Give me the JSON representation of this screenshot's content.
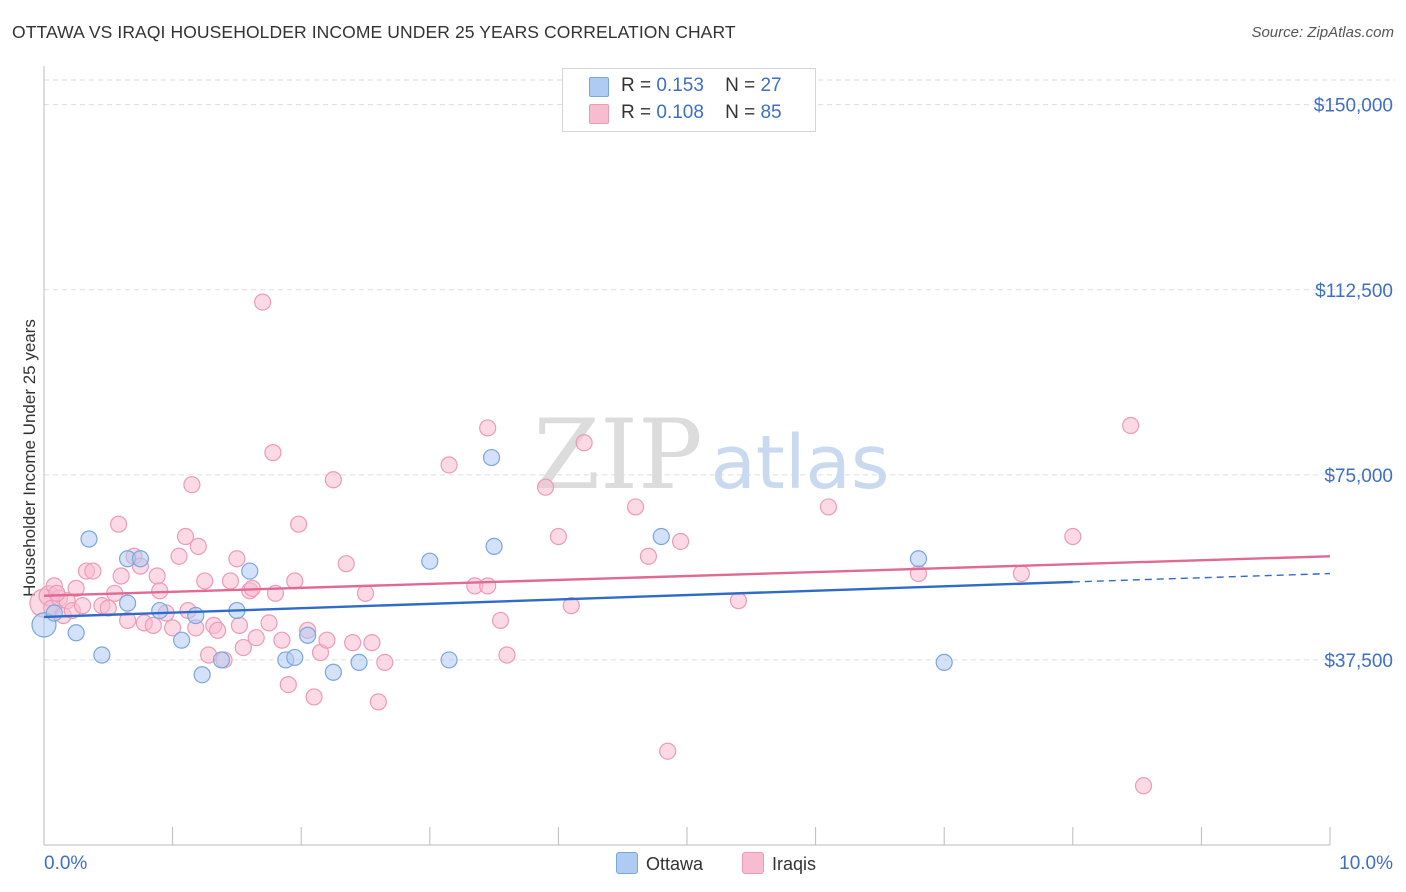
{
  "title": "OTTAWA VS IRAQI HOUSEHOLDER INCOME UNDER 25 YEARS CORRELATION CHART",
  "source": "Source: ZipAtlas.com",
  "watermark": {
    "zip": "ZIP",
    "atlas": "atlas"
  },
  "legend_top": [
    {
      "r_label": "R =",
      "r_value": "0.153",
      "n_label": "N =",
      "n_value": "27"
    },
    {
      "r_label": "R =",
      "r_value": "0.108",
      "n_label": "N =",
      "n_value": "85"
    }
  ],
  "legend_bottom": [
    {
      "label": "Ottawa"
    },
    {
      "label": "Iraqis"
    }
  ],
  "colors": {
    "ottawa_fill": "#aecbf2",
    "ottawa_stroke": "#7aa6e0",
    "ottawa_line": "#2e6cc7",
    "iraqis_fill": "#f7bcd0",
    "iraqis_stroke": "#ee9ab6",
    "iraqis_line": "#e06a94",
    "tick_label": "#3d6fc4",
    "grid": "#dddddd"
  },
  "chart_data": {
    "type": "scatter",
    "title": "OTTAWA VS IRAQI HOUSEHOLDER INCOME UNDER 25 YEARS CORRELATION CHART",
    "xlabel": "",
    "ylabel": "Householder Income Under 25 years",
    "xlim": [
      0,
      10
    ],
    "ylim": [
      0,
      155000
    ],
    "x_tick_labels": [
      "0.0%",
      "10.0%"
    ],
    "y_ticks": [
      37500,
      75000,
      112500,
      150000
    ],
    "y_tick_labels": [
      "$37,500",
      "$75,000",
      "$112,500",
      "$150,000"
    ],
    "series": [
      {
        "name": "Ottawa",
        "r": 0.153,
        "n": 27,
        "trend": {
          "x0": 0.0,
          "y0": 46200,
          "x1": 8.0,
          "y1": 53300,
          "dashed_to_x": 10.0,
          "dashed_to_y": 55000
        },
        "points": [
          [
            0.0,
            44600,
            12
          ],
          [
            0.08,
            47000,
            8
          ],
          [
            0.25,
            43000,
            8
          ],
          [
            0.35,
            62000,
            8
          ],
          [
            0.45,
            38500,
            8
          ],
          [
            0.65,
            58000,
            8
          ],
          [
            0.75,
            58000,
            8
          ],
          [
            0.9,
            47500,
            8
          ],
          [
            1.07,
            41500,
            8
          ],
          [
            1.18,
            46500,
            8
          ],
          [
            1.23,
            34500,
            8
          ],
          [
            1.38,
            37500,
            8
          ],
          [
            1.5,
            47500,
            8
          ],
          [
            1.6,
            55500,
            8
          ],
          [
            1.88,
            37500,
            8
          ],
          [
            1.95,
            38000,
            8
          ],
          [
            2.05,
            42500,
            8
          ],
          [
            2.25,
            35000,
            8
          ],
          [
            2.45,
            37000,
            8
          ],
          [
            3.0,
            57500,
            8
          ],
          [
            3.15,
            37500,
            8
          ],
          [
            3.48,
            78500,
            8
          ],
          [
            3.5,
            60500,
            8
          ],
          [
            4.8,
            62500,
            8
          ],
          [
            6.8,
            58000,
            8
          ],
          [
            7.0,
            37000,
            8
          ],
          [
            0.65,
            49000,
            8
          ]
        ]
      },
      {
        "name": "Iraqis",
        "r": 0.108,
        "n": 85,
        "trend": {
          "x0": 0.0,
          "y0": 50500,
          "x1": 10.0,
          "y1": 58500
        },
        "points": [
          [
            0.0,
            49000,
            14
          ],
          [
            0.04,
            50500,
            10
          ],
          [
            0.06,
            48000,
            8
          ],
          [
            0.08,
            52500,
            8
          ],
          [
            0.12,
            50000,
            8
          ],
          [
            0.15,
            46500,
            8
          ],
          [
            0.18,
            49500,
            8
          ],
          [
            0.22,
            47500,
            8
          ],
          [
            0.25,
            52000,
            8
          ],
          [
            0.3,
            48500,
            8
          ],
          [
            0.33,
            55500,
            8
          ],
          [
            0.38,
            55500,
            8
          ],
          [
            0.45,
            48500,
            8
          ],
          [
            0.5,
            48000,
            8
          ],
          [
            0.55,
            51000,
            8
          ],
          [
            0.58,
            65000,
            8
          ],
          [
            0.6,
            54500,
            8
          ],
          [
            0.65,
            45500,
            8
          ],
          [
            0.7,
            58500,
            8
          ],
          [
            0.75,
            56500,
            8
          ],
          [
            0.78,
            45000,
            8
          ],
          [
            0.85,
            44500,
            8
          ],
          [
            0.88,
            54500,
            8
          ],
          [
            0.9,
            51500,
            8
          ],
          [
            0.95,
            47000,
            8
          ],
          [
            1.0,
            44000,
            8
          ],
          [
            1.05,
            58500,
            8
          ],
          [
            1.1,
            62500,
            8
          ],
          [
            1.12,
            47500,
            8
          ],
          [
            1.15,
            73000,
            8
          ],
          [
            1.18,
            44000,
            8
          ],
          [
            1.2,
            60500,
            8
          ],
          [
            1.25,
            53500,
            8
          ],
          [
            1.28,
            38500,
            8
          ],
          [
            1.32,
            44500,
            8
          ],
          [
            1.35,
            43500,
            8
          ],
          [
            1.4,
            37500,
            8
          ],
          [
            1.45,
            53500,
            8
          ],
          [
            1.5,
            58000,
            8
          ],
          [
            1.52,
            44500,
            8
          ],
          [
            1.55,
            40000,
            8
          ],
          [
            1.6,
            51500,
            8
          ],
          [
            1.62,
            52000,
            8
          ],
          [
            1.65,
            42000,
            8
          ],
          [
            1.7,
            110000,
            8
          ],
          [
            1.75,
            45000,
            8
          ],
          [
            1.78,
            79500,
            8
          ],
          [
            1.8,
            51000,
            8
          ],
          [
            1.85,
            41500,
            8
          ],
          [
            1.9,
            32500,
            8
          ],
          [
            1.95,
            53500,
            8
          ],
          [
            1.98,
            65000,
            8
          ],
          [
            2.05,
            43500,
            8
          ],
          [
            2.1,
            30000,
            8
          ],
          [
            2.15,
            39000,
            8
          ],
          [
            2.2,
            41500,
            8
          ],
          [
            2.25,
            74000,
            8
          ],
          [
            2.35,
            57000,
            8
          ],
          [
            2.4,
            41000,
            8
          ],
          [
            2.5,
            51000,
            8
          ],
          [
            2.55,
            41000,
            8
          ],
          [
            2.6,
            29000,
            8
          ],
          [
            2.65,
            37000,
            8
          ],
          [
            3.15,
            77000,
            8
          ],
          [
            3.35,
            52500,
            8
          ],
          [
            3.45,
            52500,
            8
          ],
          [
            3.45,
            84500,
            8
          ],
          [
            3.55,
            45500,
            8
          ],
          [
            3.6,
            38500,
            8
          ],
          [
            3.9,
            72500,
            8
          ],
          [
            4.0,
            62500,
            8
          ],
          [
            4.1,
            48500,
            8
          ],
          [
            4.2,
            81500,
            8
          ],
          [
            4.6,
            68500,
            8
          ],
          [
            4.7,
            58500,
            8
          ],
          [
            4.85,
            19000,
            8
          ],
          [
            4.95,
            61500,
            8
          ],
          [
            5.4,
            49500,
            8
          ],
          [
            6.1,
            68500,
            8
          ],
          [
            6.8,
            55000,
            8
          ],
          [
            7.6,
            55000,
            8
          ],
          [
            8.0,
            62500,
            8
          ],
          [
            8.45,
            85000,
            8
          ],
          [
            8.55,
            12000,
            8
          ],
          [
            0.1,
            51000,
            8
          ]
        ]
      }
    ]
  }
}
